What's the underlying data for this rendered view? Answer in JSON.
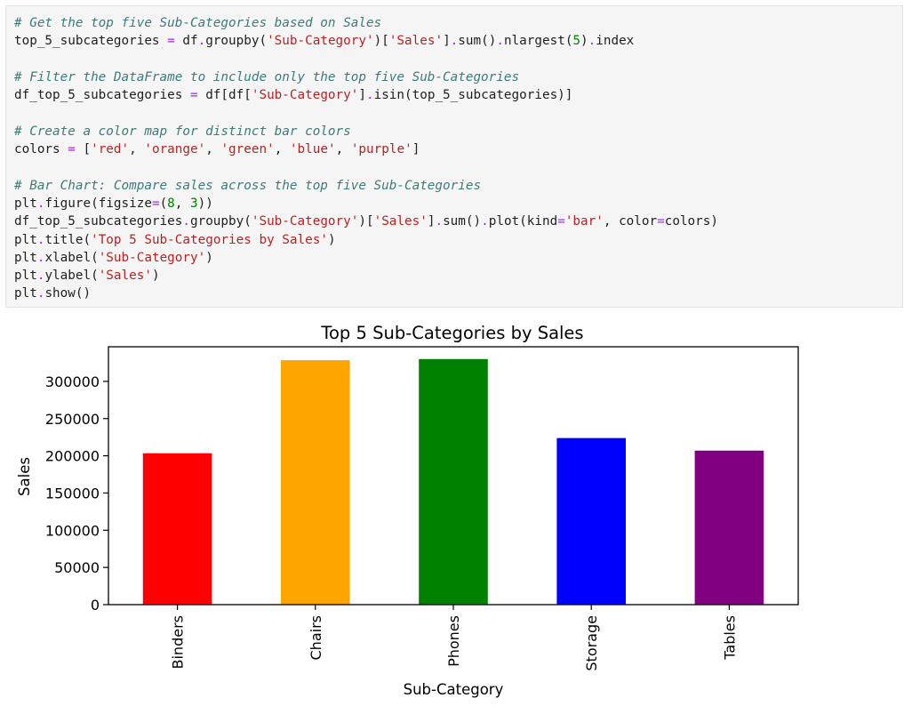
{
  "code_cell": {
    "lines": [
      [
        {
          "t": "cm",
          "v": "# Get the top five Sub-Categories based on Sales"
        }
      ],
      [
        {
          "t": "pl",
          "v": "top_5_subcategories "
        },
        {
          "t": "op",
          "v": "="
        },
        {
          "t": "pl",
          "v": " df"
        },
        {
          "t": "op",
          "v": "."
        },
        {
          "t": "pl",
          "v": "groupby("
        },
        {
          "t": "st",
          "v": "'Sub-Category'"
        },
        {
          "t": "pl",
          "v": ")["
        },
        {
          "t": "st",
          "v": "'Sales'"
        },
        {
          "t": "pl",
          "v": "]"
        },
        {
          "t": "op",
          "v": "."
        },
        {
          "t": "pl",
          "v": "sum()"
        },
        {
          "t": "op",
          "v": "."
        },
        {
          "t": "pl",
          "v": "nlargest("
        },
        {
          "t": "nu",
          "v": "5"
        },
        {
          "t": "pl",
          "v": ")"
        },
        {
          "t": "op",
          "v": "."
        },
        {
          "t": "pl",
          "v": "index"
        }
      ],
      [],
      [
        {
          "t": "cm",
          "v": "# Filter the DataFrame to include only the top five Sub-Categories"
        }
      ],
      [
        {
          "t": "pl",
          "v": "df_top_5_subcategories "
        },
        {
          "t": "op",
          "v": "="
        },
        {
          "t": "pl",
          "v": " df[df["
        },
        {
          "t": "st",
          "v": "'Sub-Category'"
        },
        {
          "t": "pl",
          "v": "]"
        },
        {
          "t": "op",
          "v": "."
        },
        {
          "t": "pl",
          "v": "isin(top_5_subcategories)]"
        }
      ],
      [],
      [
        {
          "t": "cm",
          "v": "# Create a color map for distinct bar colors"
        }
      ],
      [
        {
          "t": "pl",
          "v": "colors "
        },
        {
          "t": "op",
          "v": "="
        },
        {
          "t": "pl",
          "v": " ["
        },
        {
          "t": "st",
          "v": "'red'"
        },
        {
          "t": "pl",
          "v": ", "
        },
        {
          "t": "st",
          "v": "'orange'"
        },
        {
          "t": "pl",
          "v": ", "
        },
        {
          "t": "st",
          "v": "'green'"
        },
        {
          "t": "pl",
          "v": ", "
        },
        {
          "t": "st",
          "v": "'blue'"
        },
        {
          "t": "pl",
          "v": ", "
        },
        {
          "t": "st",
          "v": "'purple'"
        },
        {
          "t": "pl",
          "v": "]"
        }
      ],
      [],
      [
        {
          "t": "cm",
          "v": "# Bar Chart: Compare sales across the top five Sub-Categories"
        }
      ],
      [
        {
          "t": "pl",
          "v": "plt"
        },
        {
          "t": "op",
          "v": "."
        },
        {
          "t": "pl",
          "v": "figure(figsize"
        },
        {
          "t": "op",
          "v": "="
        },
        {
          "t": "pl",
          "v": "("
        },
        {
          "t": "nu",
          "v": "8"
        },
        {
          "t": "pl",
          "v": ", "
        },
        {
          "t": "nu",
          "v": "3"
        },
        {
          "t": "pl",
          "v": "))"
        }
      ],
      [
        {
          "t": "pl",
          "v": "df_top_5_subcategories"
        },
        {
          "t": "op",
          "v": "."
        },
        {
          "t": "pl",
          "v": "groupby("
        },
        {
          "t": "st",
          "v": "'Sub-Category'"
        },
        {
          "t": "pl",
          "v": ")["
        },
        {
          "t": "st",
          "v": "'Sales'"
        },
        {
          "t": "pl",
          "v": "]"
        },
        {
          "t": "op",
          "v": "."
        },
        {
          "t": "pl",
          "v": "sum()"
        },
        {
          "t": "op",
          "v": "."
        },
        {
          "t": "pl",
          "v": "plot(kind"
        },
        {
          "t": "op",
          "v": "="
        },
        {
          "t": "st",
          "v": "'bar'"
        },
        {
          "t": "pl",
          "v": ", color"
        },
        {
          "t": "op",
          "v": "="
        },
        {
          "t": "pl",
          "v": "colors)"
        }
      ],
      [
        {
          "t": "pl",
          "v": "plt"
        },
        {
          "t": "op",
          "v": "."
        },
        {
          "t": "pl",
          "v": "title("
        },
        {
          "t": "st",
          "v": "'Top 5 Sub-Categories by Sales'"
        },
        {
          "t": "pl",
          "v": ")"
        }
      ],
      [
        {
          "t": "pl",
          "v": "plt"
        },
        {
          "t": "op",
          "v": "."
        },
        {
          "t": "pl",
          "v": "xlabel("
        },
        {
          "t": "st",
          "v": "'Sub-Category'"
        },
        {
          "t": "pl",
          "v": ")"
        }
      ],
      [
        {
          "t": "pl",
          "v": "plt"
        },
        {
          "t": "op",
          "v": "."
        },
        {
          "t": "pl",
          "v": "ylabel("
        },
        {
          "t": "st",
          "v": "'Sales'"
        },
        {
          "t": "pl",
          "v": ")"
        }
      ],
      [
        {
          "t": "pl",
          "v": "plt"
        },
        {
          "t": "op",
          "v": "."
        },
        {
          "t": "pl",
          "v": "show()"
        }
      ]
    ]
  },
  "chart_data": {
    "type": "bar",
    "title": "Top 5 Sub-Categories by Sales",
    "xlabel": "Sub-Category",
    "ylabel": "Sales",
    "categories": [
      "Binders",
      "Chairs",
      "Phones",
      "Storage",
      "Tables"
    ],
    "values": [
      203413,
      328449,
      330007,
      223844,
      206966
    ],
    "colors": [
      "#ff0000",
      "#ffa500",
      "#008000",
      "#0000ff",
      "#800080"
    ],
    "ylim": [
      0,
      346482
    ],
    "yticks": [
      0,
      50000,
      100000,
      150000,
      200000,
      250000,
      300000
    ],
    "ytick_labels": [
      "0",
      "50000",
      "100000",
      "150000",
      "200000",
      "250000",
      "300000"
    ],
    "grid": false,
    "legend": "none"
  }
}
